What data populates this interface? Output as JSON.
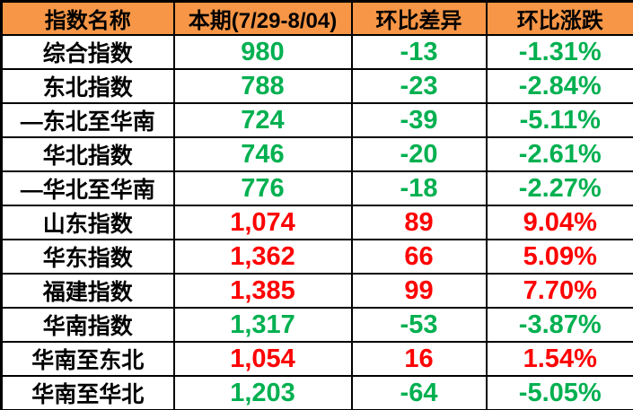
{
  "colors": {
    "header_bg": "#F79646",
    "header_text": "#000000",
    "up": "#FF0000",
    "down": "#00B050",
    "grid": "#000000",
    "row_bg": "#FFFFFF"
  },
  "chart_data": {
    "type": "table",
    "title": "",
    "columns": [
      "指数名称",
      "本期(7/29-8/04)",
      "环比差异",
      "环比涨跌"
    ],
    "rows": [
      {
        "name": "综合指数",
        "current": "980",
        "diff": "-13",
        "pct": "-1.31%",
        "trend": "down"
      },
      {
        "name": "东北指数",
        "current": "788",
        "diff": "-23",
        "pct": "-2.84%",
        "trend": "down"
      },
      {
        "name": "—东北至华南",
        "current": "724",
        "diff": "-39",
        "pct": "-5.11%",
        "trend": "down"
      },
      {
        "name": "华北指数",
        "current": "746",
        "diff": "-20",
        "pct": "-2.61%",
        "trend": "down"
      },
      {
        "name": "—华北至华南",
        "current": "776",
        "diff": "-18",
        "pct": "-2.27%",
        "trend": "down"
      },
      {
        "name": "山东指数",
        "current": "1,074",
        "diff": "89",
        "pct": "9.04%",
        "trend": "up"
      },
      {
        "name": "华东指数",
        "current": "1,362",
        "diff": "66",
        "pct": "5.09%",
        "trend": "up"
      },
      {
        "name": "福建指数",
        "current": "1,385",
        "diff": "99",
        "pct": "7.70%",
        "trend": "up"
      },
      {
        "name": "华南指数",
        "current": "1,317",
        "diff": "-53",
        "pct": "-3.87%",
        "trend": "down"
      },
      {
        "name": "华南至东北",
        "current": "1,054",
        "diff": "16",
        "pct": "1.54%",
        "trend": "up"
      },
      {
        "name": "华南至华北",
        "current": "1,203",
        "diff": "-64",
        "pct": "-5.05%",
        "trend": "down"
      }
    ]
  }
}
